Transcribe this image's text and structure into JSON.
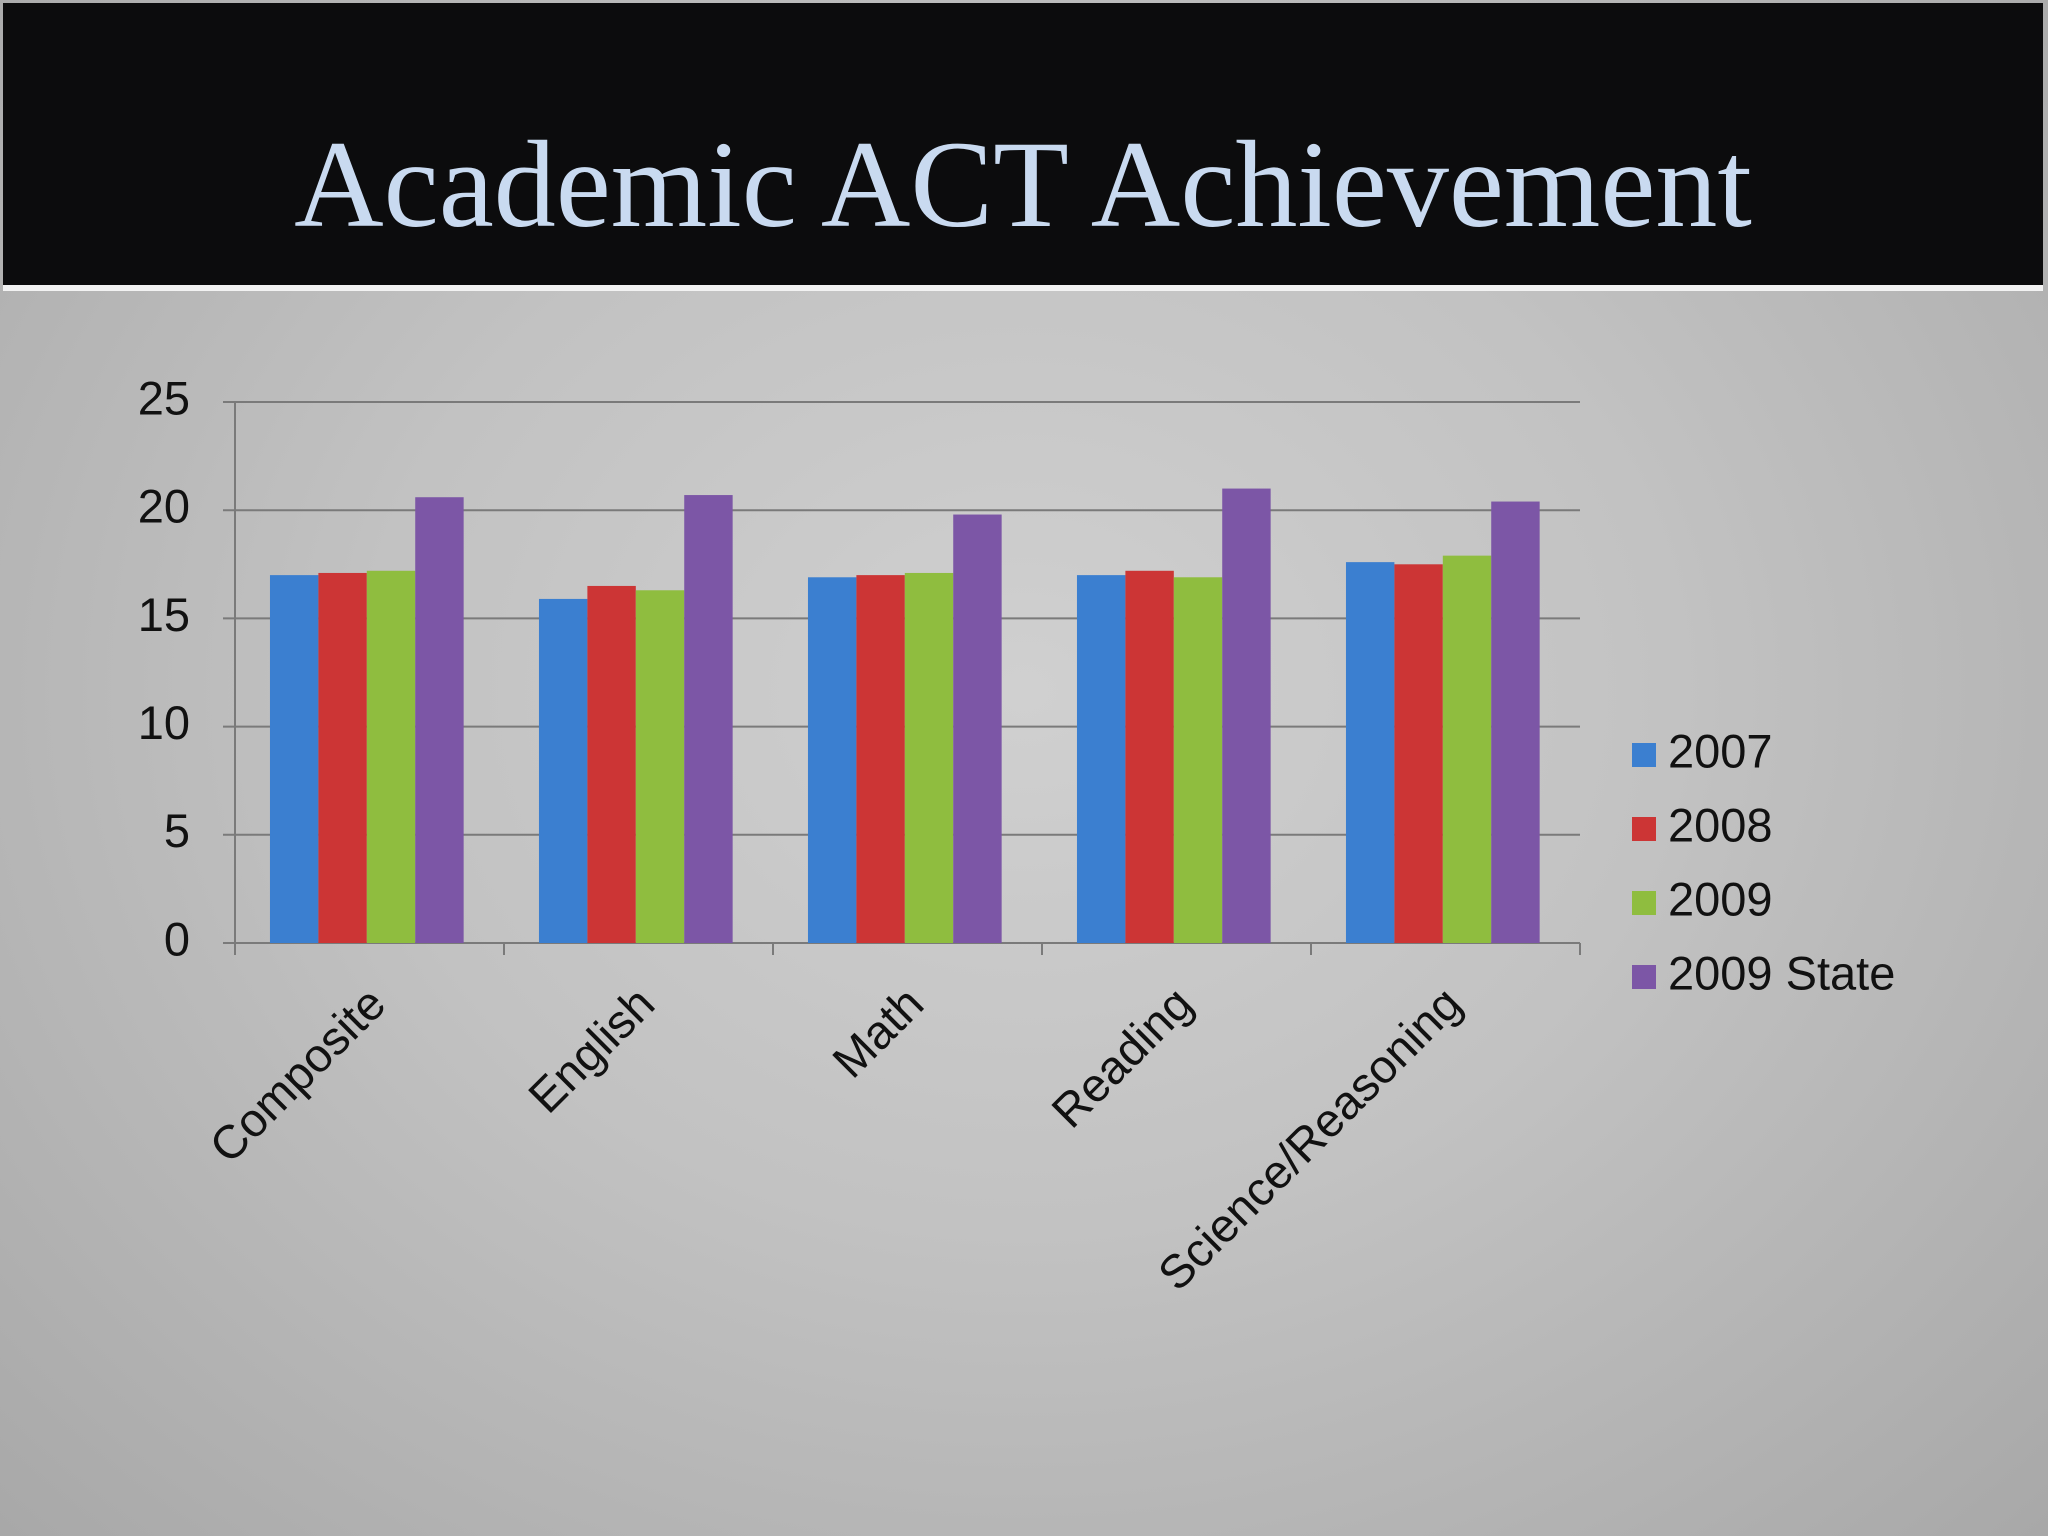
{
  "chart_data": {
    "type": "bar",
    "title": "Academic ACT Achievement",
    "categories": [
      "Composite",
      "English",
      "Math",
      "Reading",
      "Science/Reasoning"
    ],
    "series": [
      {
        "name": "2007",
        "color": "#3b7fd0",
        "values": [
          17.0,
          15.9,
          16.9,
          17.0,
          17.6
        ]
      },
      {
        "name": "2008",
        "color": "#cc3535",
        "values": [
          17.1,
          16.5,
          17.0,
          17.2,
          17.5
        ]
      },
      {
        "name": "2009",
        "color": "#8fbd3f",
        "values": [
          17.2,
          16.3,
          17.1,
          16.9,
          17.9
        ]
      },
      {
        "name": "2009 State",
        "color": "#7c56a6",
        "values": [
          20.6,
          20.7,
          19.8,
          21.0,
          20.4
        ]
      }
    ],
    "ylim": [
      0,
      25
    ],
    "yticks": [
      0,
      5,
      10,
      15,
      20,
      25
    ],
    "grid": true,
    "legend": "right"
  }
}
